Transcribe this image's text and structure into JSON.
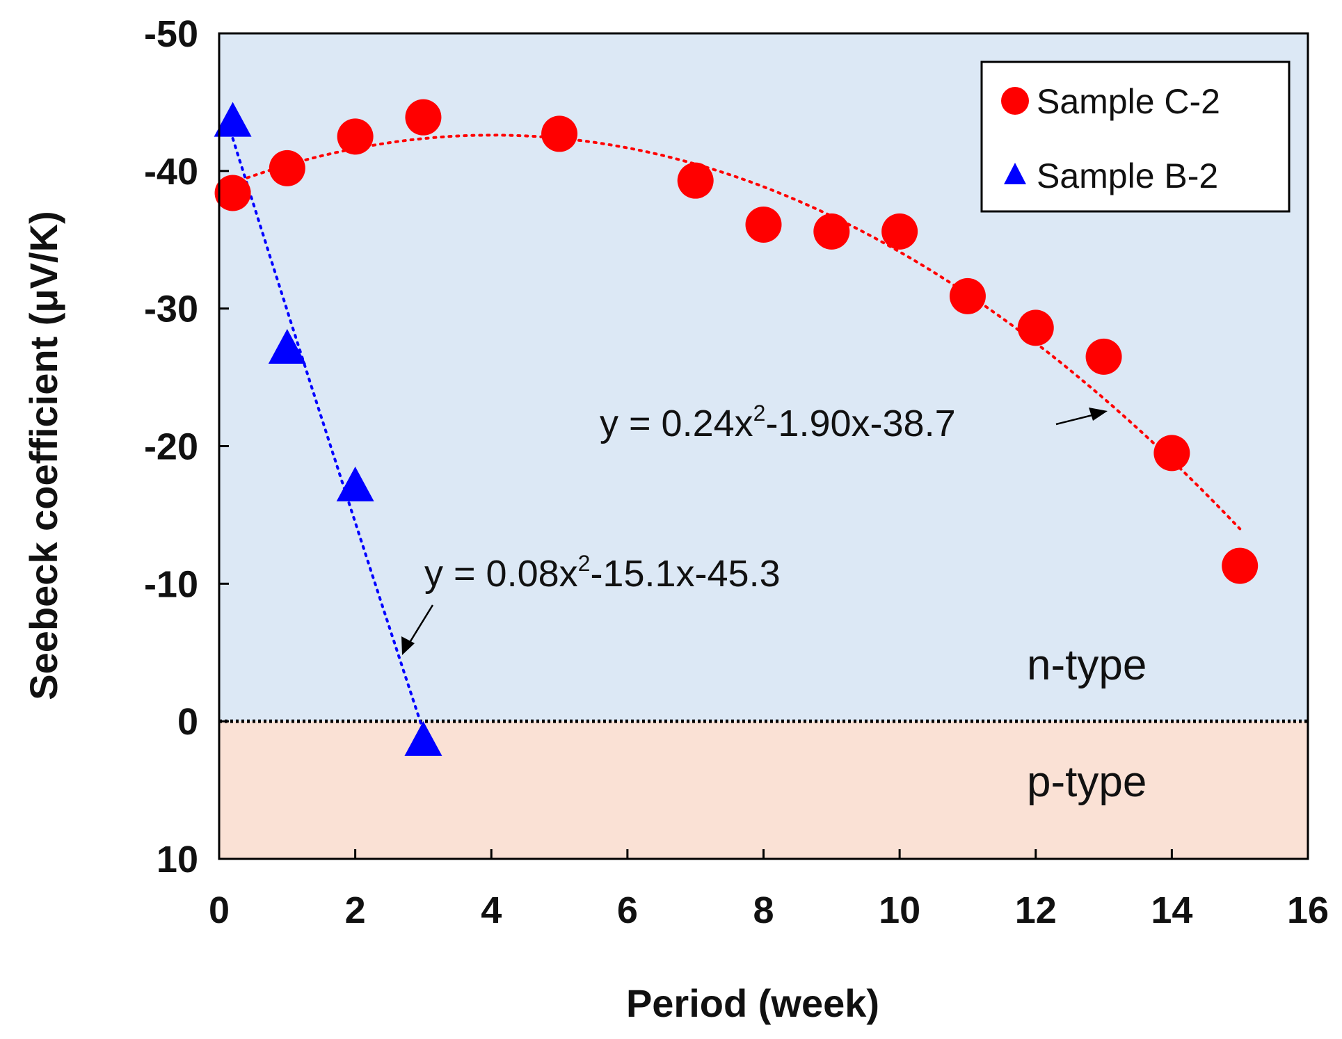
{
  "chart_data": {
    "type": "scatter",
    "title": "",
    "xlabel": "Period (week)",
    "ylabel": "Seebeck coefficient (μV/K)",
    "xlim": [
      0,
      16
    ],
    "ylim": [
      10,
      -50
    ],
    "y_axis_inverted": true,
    "xticks": [
      "0",
      "2",
      "4",
      "6",
      "8",
      "10",
      "12",
      "14",
      "16"
    ],
    "yticks": [
      "-50",
      "-40",
      "-30",
      "-20",
      "-10",
      "0",
      "10"
    ],
    "xtick_values": [
      0,
      2,
      4,
      6,
      8,
      10,
      12,
      14,
      16
    ],
    "ytick_values": [
      -50,
      -40,
      -30,
      -20,
      -10,
      0,
      10
    ],
    "regions": [
      {
        "label": "n-type",
        "y_from": -50,
        "y_to": 0,
        "color": "#dce8f5"
      },
      {
        "label": "p-type",
        "y_from": 0,
        "y_to": 10,
        "color": "#fae1d5"
      }
    ],
    "series": [
      {
        "name": "Sample C-2",
        "marker": "circle",
        "color": "#ff0000",
        "points": [
          {
            "x": 0.2,
            "y": -38.4
          },
          {
            "x": 1.0,
            "y": -40.2
          },
          {
            "x": 2.0,
            "y": -42.5
          },
          {
            "x": 3.0,
            "y": -43.9
          },
          {
            "x": 5.0,
            "y": -42.7
          },
          {
            "x": 7.0,
            "y": -39.3
          },
          {
            "x": 8.0,
            "y": -36.1
          },
          {
            "x": 9.0,
            "y": -35.6
          },
          {
            "x": 10.0,
            "y": -35.6
          },
          {
            "x": 11.0,
            "y": -30.9
          },
          {
            "x": 12.0,
            "y": -28.6
          },
          {
            "x": 13.0,
            "y": -26.5
          },
          {
            "x": 14.0,
            "y": -19.5
          },
          {
            "x": 15.0,
            "y": -11.3
          }
        ],
        "fit": {
          "label": "y = 0.24x",
          "label_sup": "2",
          "label_rest": "-1.90x-38.7",
          "x_range": [
            0.2,
            15.0
          ]
        }
      },
      {
        "name": "Sample B-2",
        "marker": "triangle",
        "color": "#0000ff",
        "points": [
          {
            "x": 0.2,
            "y": -43.5
          },
          {
            "x": 1.0,
            "y": -27.0
          },
          {
            "x": 2.0,
            "y": -17.0
          },
          {
            "x": 3.0,
            "y": 1.5
          }
        ],
        "fit": {
          "label": "y = 0.08x",
          "label_sup": "2",
          "label_rest": "-15.1x-45.3",
          "x_range": [
            0.2,
            3.0
          ]
        }
      }
    ],
    "legend": {
      "position": "top-right",
      "entries": [
        "Sample C-2",
        "Sample B-2"
      ]
    },
    "region_labels": [
      "n-type",
      "p-type"
    ]
  }
}
